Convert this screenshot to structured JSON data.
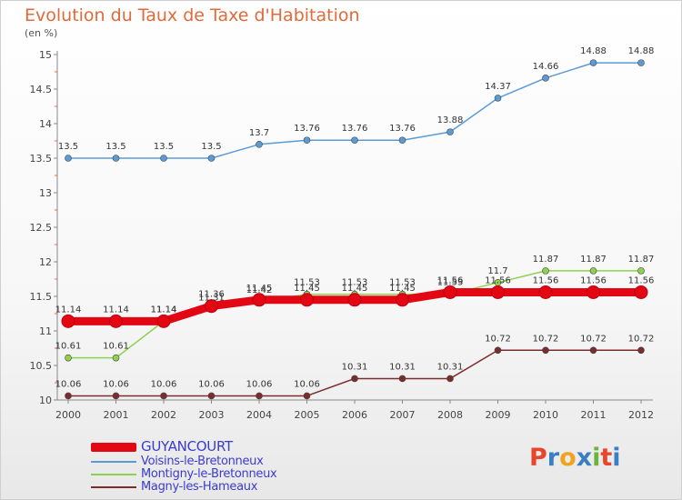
{
  "header": {
    "title": "Evolution du Taux de Taxe d'Habitation",
    "subtitle": "(en %)"
  },
  "logo": {
    "text": "Proxiti",
    "colors": [
      "#e8452c",
      "#3a7fc4",
      "#f2a31d",
      "#3a7fc4",
      "#6bb33a",
      "#e8452c",
      "#3a7fc4"
    ]
  },
  "chart_data": {
    "type": "line",
    "title": "Evolution du Taux de Taxe d'Habitation",
    "ylabel": "(en %)",
    "xlabel": "",
    "x": [
      "2000",
      "2001",
      "2002",
      "2003",
      "2004",
      "2005",
      "2006",
      "2007",
      "2008",
      "2009",
      "2010",
      "2011",
      "2012"
    ],
    "ylim": [
      10,
      15
    ],
    "yticks": [
      "10",
      "10.5",
      "11",
      "11.5",
      "12",
      "12.5",
      "13",
      "13.5",
      "14",
      "14.5",
      "15"
    ],
    "grid": false,
    "legend": "bottom-left",
    "series": [
      {
        "name": "GUYANCOURT",
        "color": "#e30613",
        "values": [
          11.14,
          11.14,
          11.14,
          11.36,
          11.45,
          11.45,
          11.45,
          11.45,
          11.56,
          11.56,
          11.56,
          11.56,
          11.56
        ],
        "labels": [
          "11.14",
          "11.14",
          "11.14",
          "11.36",
          "11.45",
          "11.45",
          "11.45",
          "11.45",
          "11.56",
          "11.56",
          "11.56",
          "11.56",
          "11.56"
        ]
      },
      {
        "name": "Voisins-le-Bretonneux",
        "color": "#5b9bd5",
        "values": [
          13.5,
          13.5,
          13.5,
          13.5,
          13.7,
          13.76,
          13.76,
          13.76,
          13.88,
          14.37,
          14.66,
          14.88,
          14.88
        ],
        "labels": [
          "13.5",
          "13.5",
          "13.5",
          "13.5",
          "13.7",
          "13.76",
          "13.76",
          "13.76",
          "13.88",
          "14.37",
          "14.66",
          "14.88",
          "14.88"
        ]
      },
      {
        "name": "Montigny-le-Bretonneux",
        "color": "#8fd14f",
        "values": [
          10.61,
          10.61,
          11.14,
          11.31,
          11.42,
          11.53,
          11.53,
          11.53,
          11.53,
          11.7,
          11.87,
          11.87,
          11.87
        ],
        "labels": [
          "10.61",
          "10.61",
          "11.14",
          "11.31",
          "11.42",
          "11.53",
          "11.53",
          "11.53",
          "11.53",
          "11.7",
          "11.87",
          "11.87",
          "11.87"
        ]
      },
      {
        "name": "Magny-les-Hameaux",
        "color": "#7b2d2d",
        "values": [
          10.06,
          10.06,
          10.06,
          10.06,
          10.06,
          10.06,
          10.31,
          10.31,
          10.31,
          10.72,
          10.72,
          10.72,
          10.72
        ],
        "labels": [
          "10.06",
          "10.06",
          "10.06",
          "10.06",
          "10.06",
          "10.06",
          "10.31",
          "10.31",
          "10.31",
          "10.72",
          "10.72",
          "10.72",
          "10.72"
        ]
      }
    ]
  }
}
